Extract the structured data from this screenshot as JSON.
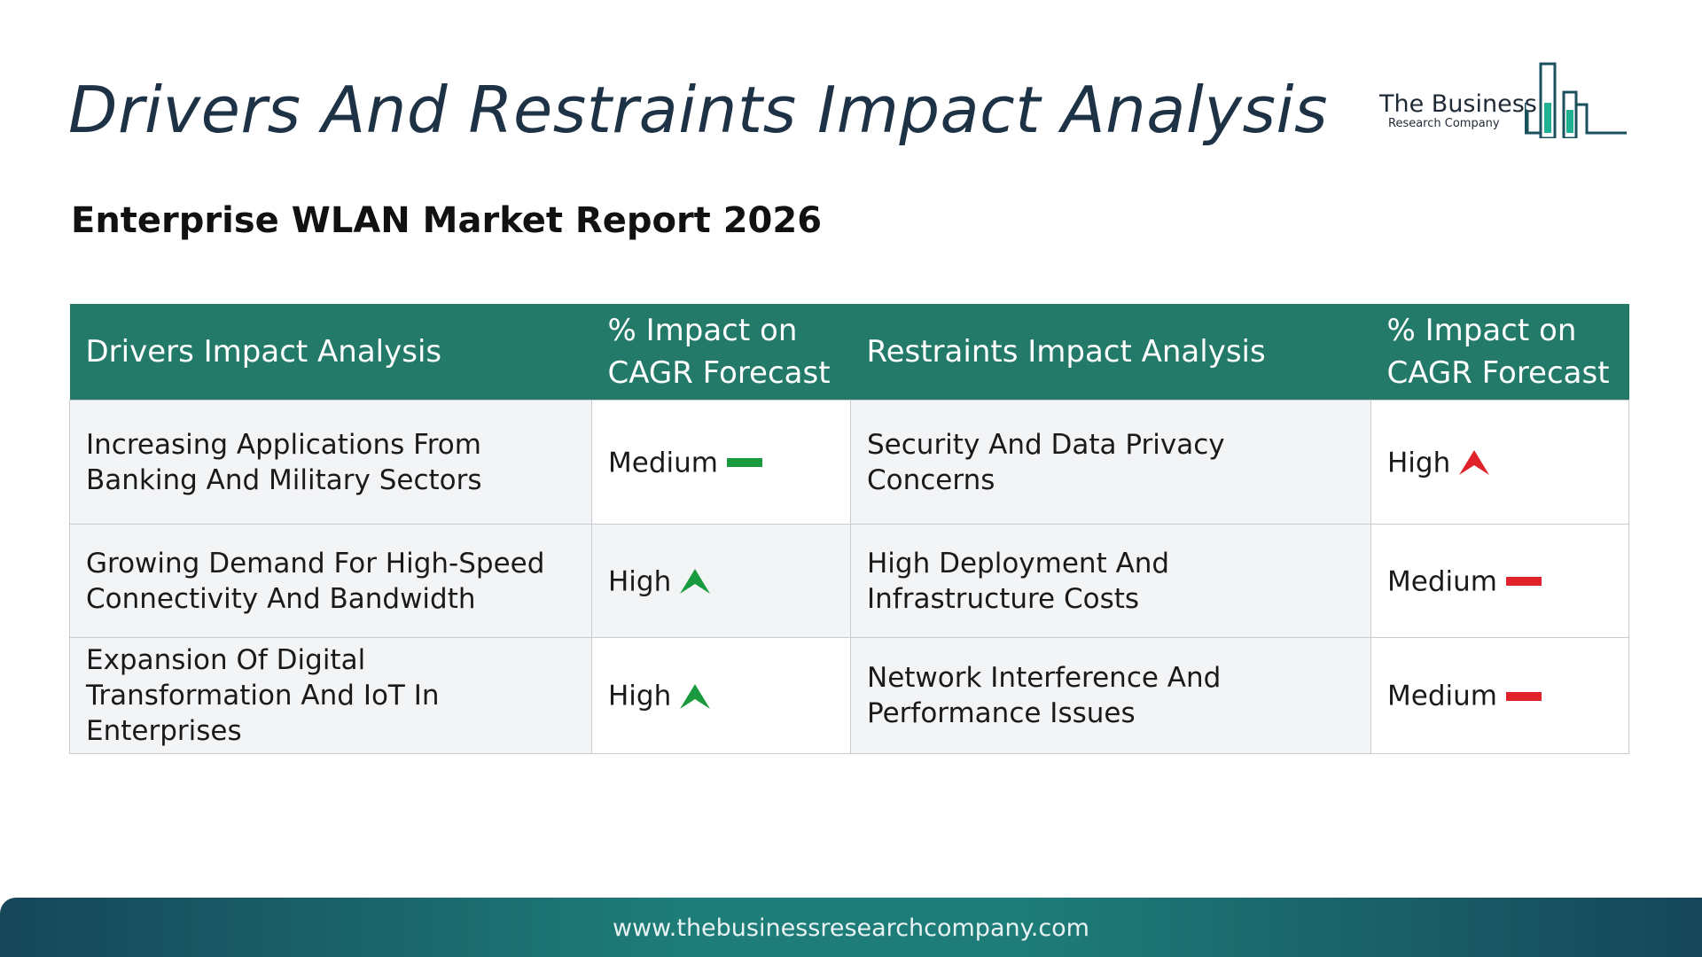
{
  "header": {
    "title": "Drivers And Restraints Impact Analysis",
    "subtitle": "Enterprise WLAN Market Report 2026"
  },
  "logo": {
    "line1": "The Business",
    "line2": "Research Company",
    "icon": "bar-chart-building-icon"
  },
  "table": {
    "headers": {
      "drivers": "Drivers Impact Analysis",
      "drivers_impact": "% Impact on CAGR Forecast",
      "restraints": "Restraints Impact Analysis",
      "restraints_impact": "% Impact on CAGR Forecast"
    },
    "rows": [
      {
        "driver": "Increasing Applications From Banking And Military Sectors",
        "driver_level": "Medium",
        "driver_icon": "dash-icon",
        "restraint": "Security And Data Privacy Concerns",
        "restraint_level": "High",
        "restraint_icon": "arrow-up-icon"
      },
      {
        "driver": "Growing Demand For High-Speed Connectivity And Bandwidth",
        "driver_level": "High",
        "driver_icon": "arrow-up-icon",
        "restraint": "High Deployment And Infrastructure Costs",
        "restraint_level": "Medium",
        "restraint_icon": "dash-icon"
      },
      {
        "driver": "Expansion Of Digital Transformation And IoT In Enterprises",
        "driver_level": "High",
        "driver_icon": "arrow-up-icon",
        "restraint": "Network Interference And Performance Issues",
        "restraint_level": "Medium",
        "restraint_icon": "dash-icon"
      }
    ]
  },
  "colors": {
    "header_bg": "#237a69",
    "driver_level": "#1a9a3e",
    "restraint_level": "#e0232b",
    "title": "#1e3246"
  },
  "footer": {
    "url": "www.thebusinessresearchcompany.com"
  }
}
